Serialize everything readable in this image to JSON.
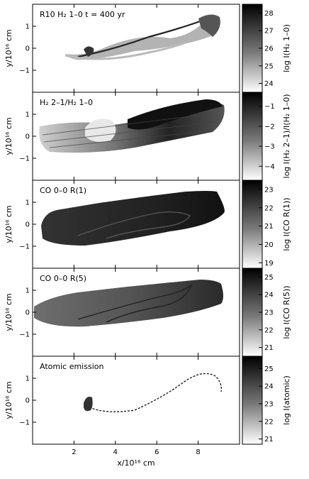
{
  "figure": {
    "xlabel": "x/10¹⁶ cm",
    "x_ticks": [
      "2",
      "4",
      "6",
      "8"
    ],
    "xlim": [
      0,
      10
    ],
    "ylim": [
      -2,
      2
    ]
  },
  "panels": [
    {
      "id": "h2-1-0",
      "label": "R10  H₂ 1–0 t = 400 yr",
      "ylabel": "y/10¹⁶ cm",
      "y_ticks": [
        "1",
        "0",
        "−1"
      ],
      "colorbar_label": "log I(H₂ 1–0)",
      "colorbar_ticks": [
        "28",
        "27",
        "26",
        "25",
        "24"
      ],
      "colorbar_range": [
        23.5,
        28.5
      ]
    },
    {
      "id": "h2-ratio",
      "label": "H₂ 2–1/H₂ 1–0",
      "ylabel": "y/10¹⁶ cm",
      "y_ticks": [
        "1",
        "0",
        "−1"
      ],
      "colorbar_label": "log I(H₂ 2–1)/I(H₂ 1–0)",
      "colorbar_ticks": [
        "−1",
        "−2",
        "−3",
        "−4"
      ],
      "colorbar_range": [
        -4.7,
        -0.3
      ]
    },
    {
      "id": "co-r1",
      "label": "CO 0–0 R(1)",
      "ylabel": "y/10¹⁶ cm",
      "y_ticks": [
        "1",
        "0",
        "−1"
      ],
      "colorbar_label": "log I(CO R(1))",
      "colorbar_ticks": [
        "23",
        "22",
        "21",
        "20",
        "19"
      ],
      "colorbar_range": [
        18.7,
        23.5
      ]
    },
    {
      "id": "co-r5",
      "label": "CO 0–0 R(5)",
      "ylabel": "y/10¹⁶ cm",
      "y_ticks": [
        "1",
        "0",
        "−1"
      ],
      "colorbar_label": "log I(CO R(5))",
      "colorbar_ticks": [
        "25",
        "24",
        "23",
        "22",
        "21"
      ],
      "colorbar_range": [
        20.5,
        25.5
      ]
    },
    {
      "id": "atomic",
      "label": "Atomic emission",
      "ylabel": "y/10¹⁶ cm",
      "y_ticks": [
        "1",
        "0",
        "−1"
      ],
      "colorbar_label": "log I(atomic)",
      "colorbar_ticks": [
        "25",
        "24",
        "23",
        "22",
        "21"
      ],
      "colorbar_range": [
        20.7,
        25.7
      ]
    }
  ]
}
